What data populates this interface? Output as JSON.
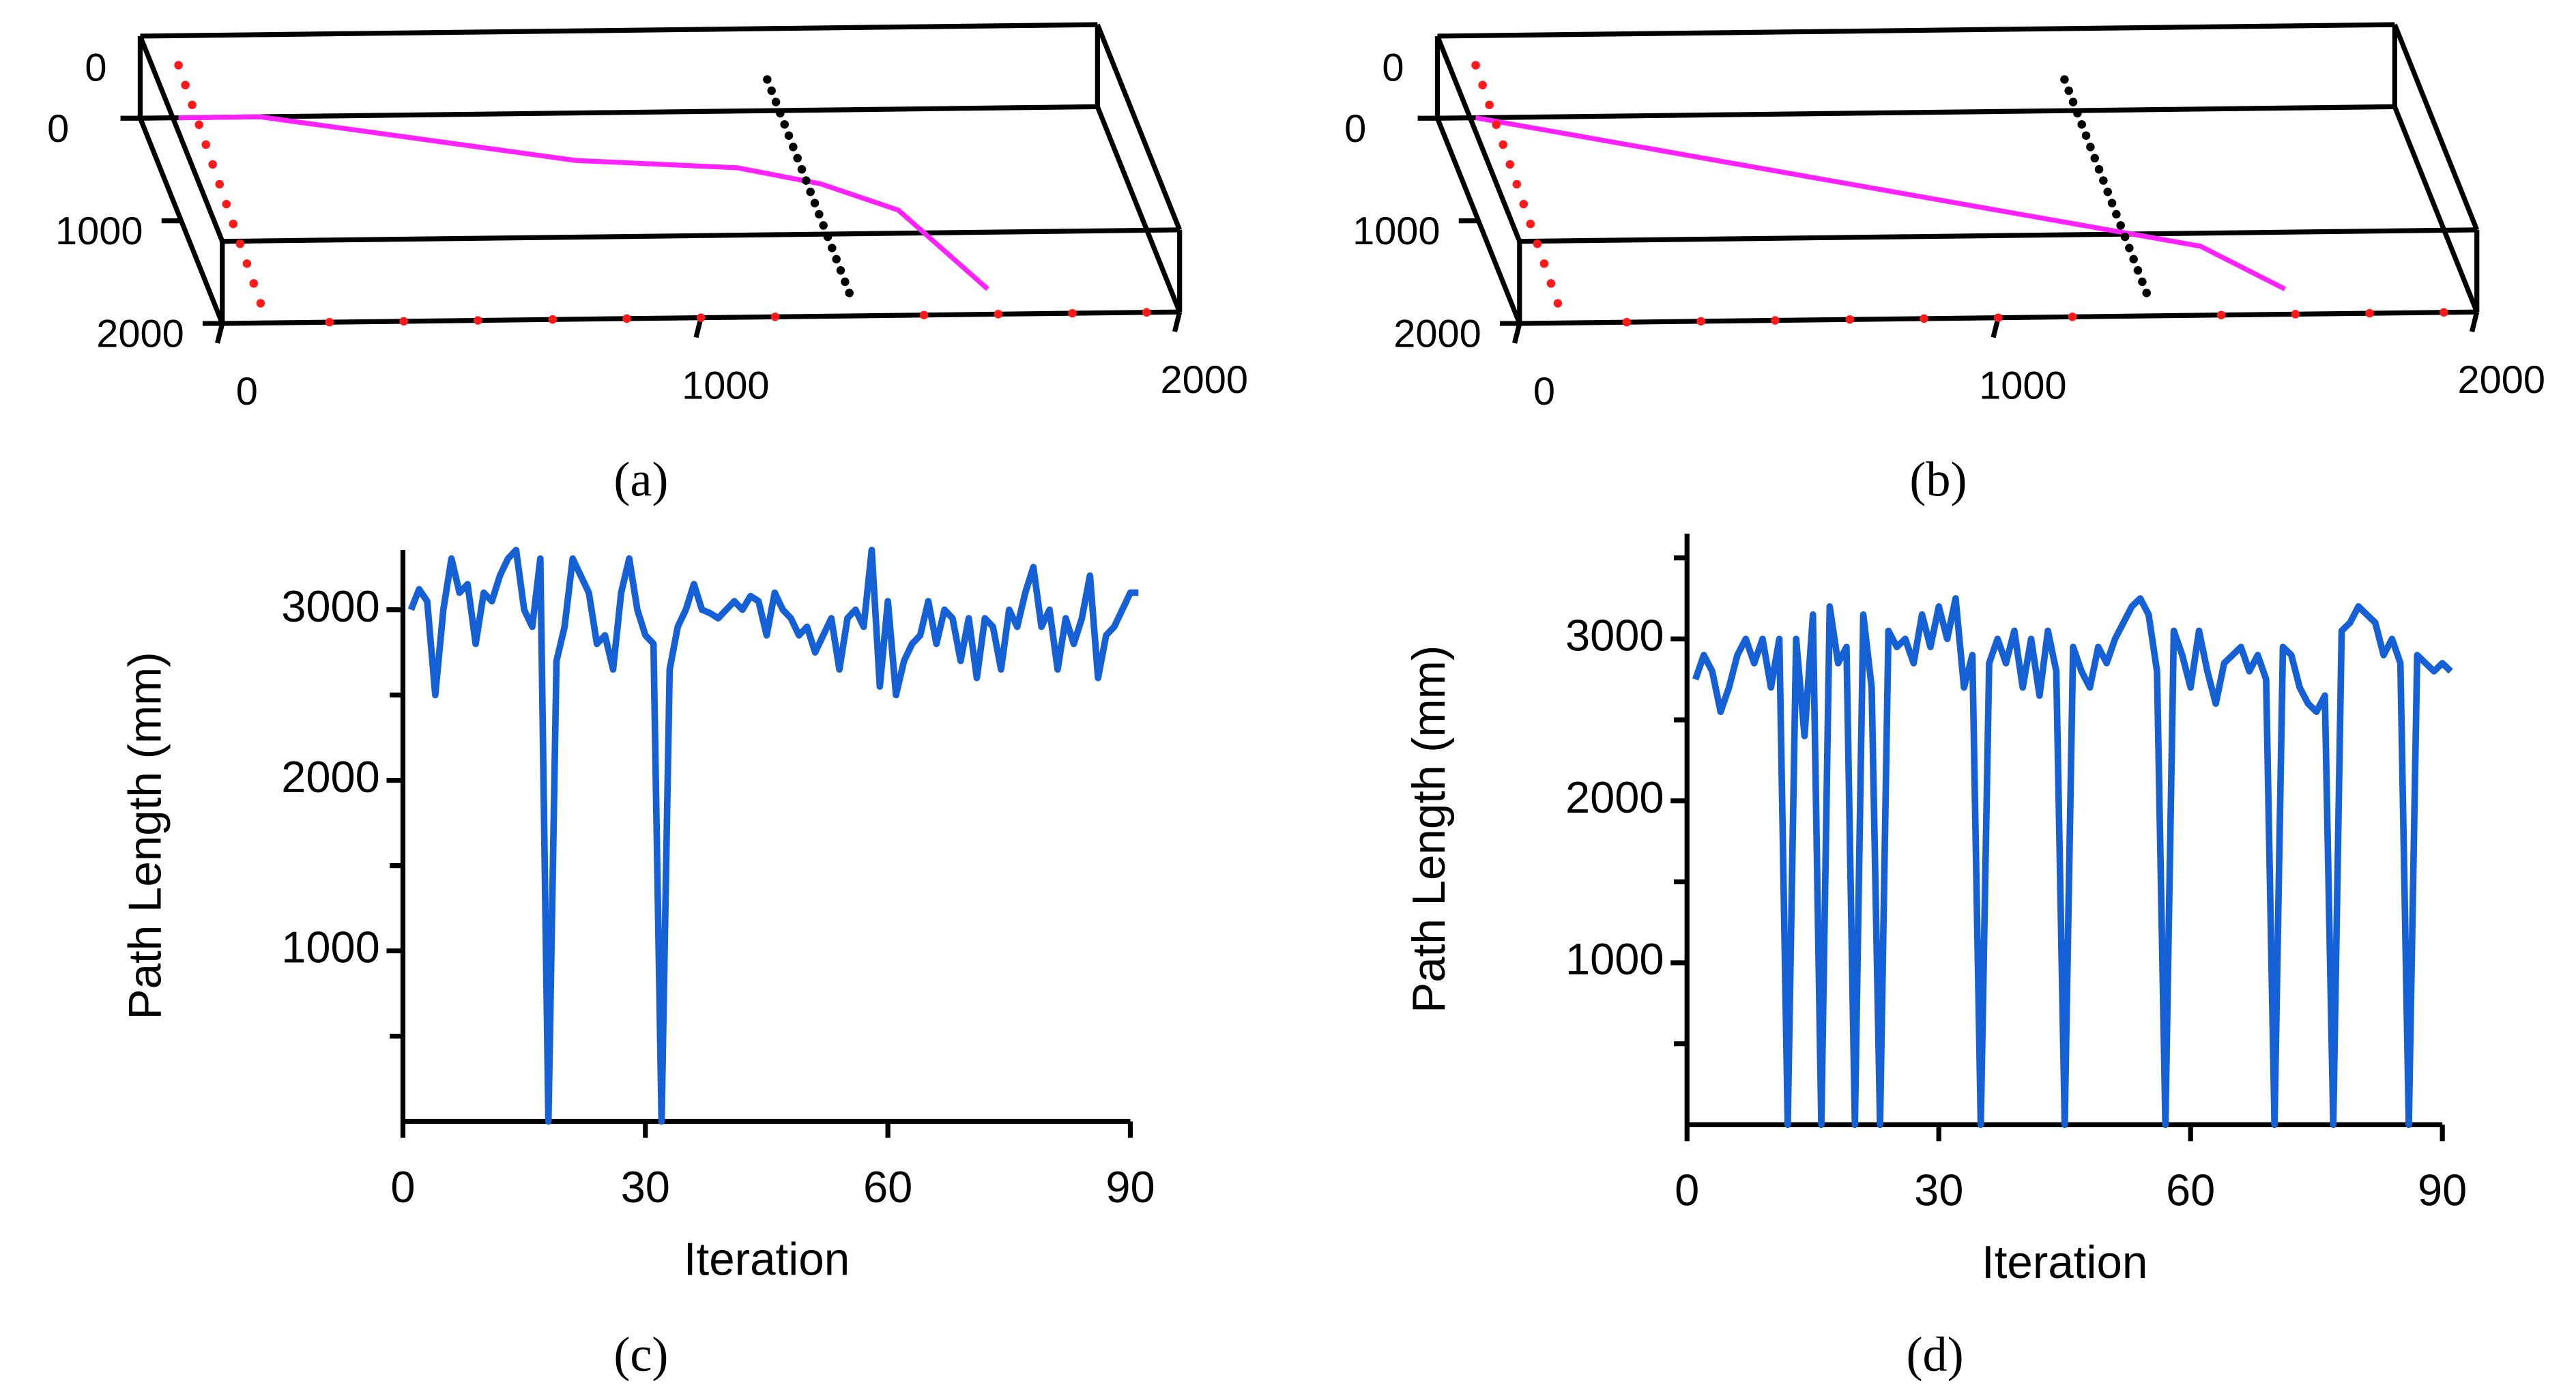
{
  "chart_data": [
    {
      "type": "scatter3d",
      "caption": "(a)",
      "xlim": [
        0,
        2000
      ],
      "ylim": [
        0,
        2000
      ],
      "zlim": [
        -500,
        500
      ],
      "xticks": [
        0,
        1000,
        2000
      ],
      "yticks": [
        0,
        1000,
        2000
      ],
      "zticks": [
        0
      ],
      "series": [
        {
          "color": "#ff1a1a",
          "marker": "dot",
          "x": [
            80,
            80,
            80,
            80,
            80,
            80,
            80,
            80,
            80,
            80,
            80,
            80,
            80,
            224,
            379,
            534,
            690,
            845,
            1000,
            1155,
            1466,
            1621,
            1776,
            1931
          ],
          "y": [
            0,
            167,
            333,
            500,
            667,
            833,
            1000,
            1167,
            1333,
            1500,
            1667,
            1833,
            2000,
            2000,
            2000,
            2000,
            2000,
            2000,
            2000,
            2000,
            2000,
            2000,
            2000,
            2000
          ],
          "z": [
            140,
            107,
            73,
            40,
            7,
            -27,
            -60,
            -93,
            -127,
            -160,
            -193,
            -227,
            -260,
            -500,
            -500,
            -500,
            -500,
            -500,
            -500,
            -500,
            -500,
            -500,
            -500,
            -500
          ]
        },
        {
          "color": "#000000",
          "marker": "dot",
          "x": [
            1310,
            1310,
            1310,
            1310,
            1310,
            1310,
            1310,
            1310,
            1310,
            1310,
            1310,
            1310,
            1310,
            1310,
            1310,
            1310,
            1310,
            1310,
            1310,
            1310
          ],
          "y": [
            0,
            105,
            211,
            316,
            421,
            526,
            632,
            737,
            842,
            947,
            1053,
            1158,
            1263,
            1368,
            1474,
            1579,
            1684,
            1789,
            1895,
            2000
          ],
          "z": [
            -120,
            -125,
            -131,
            -136,
            -141,
            -146,
            -152,
            -157,
            -162,
            -167,
            -173,
            -178,
            -183,
            -188,
            -194,
            -199,
            -204,
            -209,
            -215,
            -220
          ]
        },
        {
          "color": "#ff22ff",
          "marker": "line",
          "x": [
            80,
            250,
            870,
            1200,
            1360,
            1500,
            1620
          ],
          "y": [
            0,
            0,
            460,
            550,
            715,
            980,
            1755
          ],
          "z": [
            -500,
            -500,
            -500,
            -500,
            -500,
            -500,
            -500
          ]
        }
      ]
    },
    {
      "type": "scatter3d",
      "caption": "(b)",
      "xlim": [
        0,
        2000
      ],
      "ylim": [
        0,
        2000
      ],
      "zlim": [
        -500,
        500
      ],
      "xticks": [
        0,
        1000,
        2000
      ],
      "yticks": [
        0,
        1000,
        2000
      ],
      "zticks": [
        0
      ],
      "series": [
        {
          "color": "#ff1a1a",
          "marker": "dot",
          "x": [
            80,
            80,
            80,
            80,
            80,
            80,
            80,
            80,
            80,
            80,
            80,
            80,
            80,
            224,
            379,
            534,
            690,
            845,
            1000,
            1155,
            1466,
            1621,
            1776,
            1931
          ],
          "y": [
            0,
            167,
            333,
            500,
            667,
            833,
            1000,
            1167,
            1333,
            1500,
            1667,
            1833,
            2000,
            2000,
            2000,
            2000,
            2000,
            2000,
            2000,
            2000,
            2000,
            2000,
            2000,
            2000
          ],
          "z": [
            140,
            107,
            73,
            40,
            7,
            -27,
            -60,
            -93,
            -127,
            -160,
            -193,
            -227,
            -260,
            -500,
            -500,
            -500,
            -500,
            -500,
            -500,
            -500,
            -500,
            -500,
            -500,
            -500
          ]
        },
        {
          "color": "#000000",
          "marker": "dot",
          "x": [
            1310,
            1310,
            1310,
            1310,
            1310,
            1310,
            1310,
            1310,
            1310,
            1310,
            1310,
            1310,
            1310,
            1310,
            1310,
            1310,
            1310,
            1310,
            1310,
            1310
          ],
          "y": [
            0,
            105,
            211,
            316,
            421,
            526,
            632,
            737,
            842,
            947,
            1053,
            1158,
            1263,
            1368,
            1474,
            1579,
            1684,
            1789,
            1895,
            2000
          ],
          "z": [
            -120,
            -125,
            -131,
            -136,
            -141,
            -146,
            -152,
            -157,
            -162,
            -167,
            -173,
            -178,
            -183,
            -188,
            -194,
            -199,
            -204,
            -209,
            -215,
            -220
          ]
        },
        {
          "color": "#ff22ff",
          "marker": "line",
          "x": [
            80,
            1480,
            1620
          ],
          "y": [
            0,
            1330,
            1755
          ],
          "z": [
            -500,
            -500,
            -500
          ]
        }
      ]
    },
    {
      "type": "line",
      "caption": "(c)",
      "x_label": "Iteration",
      "y_label": "Path Length (mm)",
      "xlim": [
        0,
        90
      ],
      "ylim": [
        0,
        3350
      ],
      "xticks": [
        0,
        30,
        60,
        90
      ],
      "yticks": [
        1000,
        2000,
        3000
      ],
      "minor_yticks": [
        500,
        1500,
        2500
      ],
      "x": [
        1,
        2,
        3,
        4,
        5,
        6,
        7,
        8,
        9,
        10,
        11,
        12,
        13,
        14,
        15,
        16,
        17,
        18,
        19,
        20,
        21,
        22,
        23,
        24,
        25,
        26,
        27,
        28,
        29,
        30,
        31,
        32,
        33,
        34,
        35,
        36,
        37,
        38,
        39,
        40,
        41,
        42,
        43,
        44,
        45,
        46,
        47,
        48,
        49,
        50,
        51,
        52,
        53,
        54,
        55,
        56,
        57,
        58,
        59,
        60,
        61,
        62,
        63,
        64,
        65,
        66,
        67,
        68,
        69,
        70,
        71,
        72,
        73,
        74,
        75,
        76,
        77,
        78,
        79,
        80,
        81,
        82,
        83,
        84,
        85,
        86,
        87,
        88,
        89,
        90,
        91
      ],
      "series": [
        {
          "color": "#1560d4",
          "values": [
            3000,
            3120,
            3050,
            2500,
            3000,
            3300,
            3100,
            3150,
            2800,
            3100,
            3050,
            3200,
            3300,
            3350,
            3000,
            2900,
            3300,
            0,
            2700,
            2900,
            3300,
            3200,
            3100,
            2800,
            2850,
            2650,
            3100,
            3300,
            3000,
            2850,
            2800,
            0,
            2650,
            2900,
            3000,
            3150,
            3000,
            2980,
            2950,
            3000,
            3050,
            3000,
            3080,
            3050,
            2850,
            3100,
            3000,
            2950,
            2850,
            2900,
            2750,
            2850,
            2950,
            2650,
            2950,
            3000,
            2900,
            3350,
            2550,
            3050,
            2500,
            2700,
            2800,
            2850,
            3050,
            2800,
            3000,
            2950,
            2700,
            2950,
            2600,
            2950,
            2900,
            2650,
            3000,
            2900,
            3100,
            3250,
            2900,
            3000,
            2650,
            2950,
            2800,
            2950,
            3200,
            2600,
            2850,
            2900,
            3000,
            3100,
            3100
          ]
        }
      ]
    },
    {
      "type": "line",
      "caption": "(d)",
      "x_label": "Iteration",
      "y_label": "Path Length (mm)",
      "xlim": [
        0,
        90
      ],
      "ylim": [
        0,
        3650
      ],
      "xticks": [
        0,
        30,
        60,
        90
      ],
      "yticks": [
        1000,
        2000,
        3000
      ],
      "minor_yticks": [
        500,
        1500,
        2500,
        3500
      ],
      "x": [
        1,
        2,
        3,
        4,
        5,
        6,
        7,
        8,
        9,
        10,
        11,
        12,
        13,
        14,
        15,
        16,
        17,
        18,
        19,
        20,
        21,
        22,
        23,
        24,
        25,
        26,
        27,
        28,
        29,
        30,
        31,
        32,
        33,
        34,
        35,
        36,
        37,
        38,
        39,
        40,
        41,
        42,
        43,
        44,
        45,
        46,
        47,
        48,
        49,
        50,
        51,
        52,
        53,
        54,
        55,
        56,
        57,
        58,
        59,
        60,
        61,
        62,
        63,
        64,
        65,
        66,
        67,
        68,
        69,
        70,
        71,
        72,
        73,
        74,
        75,
        76,
        77,
        78,
        79,
        80,
        81,
        82,
        83,
        84,
        85,
        86,
        87,
        88,
        89,
        90,
        91
      ],
      "series": [
        {
          "color": "#1560d4",
          "values": [
            2750,
            2900,
            2800,
            2550,
            2700,
            2900,
            3000,
            2850,
            3000,
            2700,
            3000,
            0,
            3000,
            2400,
            3150,
            0,
            3200,
            2850,
            2950,
            0,
            3150,
            2700,
            0,
            3050,
            2950,
            3000,
            2850,
            3150,
            2950,
            3200,
            3000,
            3250,
            2700,
            2900,
            0,
            2850,
            3000,
            2850,
            3050,
            2700,
            3000,
            2650,
            3050,
            2800,
            0,
            2950,
            2800,
            2700,
            2950,
            2850,
            3000,
            3100,
            3200,
            3250,
            3150,
            2800,
            0,
            3050,
            2900,
            2700,
            3050,
            2800,
            2600,
            2850,
            2900,
            2950,
            2800,
            2900,
            2750,
            0,
            2950,
            2900,
            2700,
            2600,
            2550,
            2650,
            0,
            3050,
            3100,
            3200,
            3150,
            3100,
            2900,
            3000,
            2850,
            0,
            2900,
            2850,
            2800,
            2850,
            2800
          ]
        }
      ]
    }
  ]
}
